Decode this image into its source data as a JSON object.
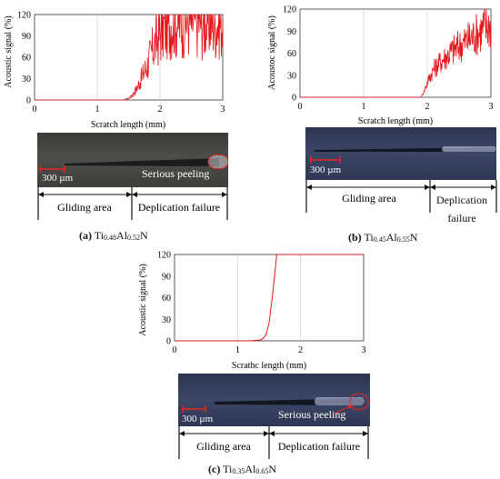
{
  "chart_data": [
    {
      "type": "line",
      "panel": "a",
      "xlabel": "Scratch length (mm)",
      "ylabel": "Acoustic signal (%)",
      "xlim": [
        0,
        3
      ],
      "ylim": [
        0,
        120
      ],
      "xticks": [
        0,
        1,
        2,
        3
      ],
      "yticks": [
        0,
        30,
        60,
        90,
        120
      ],
      "series": [
        {
          "color": "#e8141b",
          "x": [
            0,
            0.5,
            1.0,
            1.4,
            1.5,
            1.55,
            1.6,
            1.65,
            1.7,
            1.75,
            1.8,
            1.85,
            1.9,
            1.95,
            2.0,
            2.05,
            2.1,
            2.15,
            2.2,
            2.3,
            2.4,
            2.5,
            2.6,
            2.7,
            2.8,
            2.9,
            3.0
          ],
          "y": [
            0,
            0,
            0,
            0,
            2,
            6,
            12,
            20,
            30,
            40,
            50,
            62,
            75,
            85,
            95,
            100,
            106,
            110,
            112,
            110,
            113,
            110,
            114,
            108,
            112,
            109,
            111
          ]
        }
      ],
      "photo": {
        "scale_label": "300 µm",
        "label": "Serious peeling",
        "regions": [
          "Gliding area",
          "Deplication failure"
        ]
      },
      "caption": {
        "tag": "(a)",
        "formula": [
          "Ti",
          "0.48",
          "Al",
          "0.52",
          "N",
          ""
        ]
      }
    },
    {
      "type": "line",
      "panel": "b",
      "xlabel": "Scratch length (mm)",
      "ylabel": "Acoustoc signal (%)",
      "xlim": [
        0,
        3
      ],
      "ylim": [
        0,
        120
      ],
      "xticks": [
        0,
        1,
        2,
        3
      ],
      "yticks": [
        0,
        30,
        60,
        90,
        120
      ],
      "series": [
        {
          "color": "#e8141b",
          "x": [
            0,
            0.5,
            1.0,
            1.5,
            1.9,
            1.95,
            2.0,
            2.05,
            2.1,
            2.2,
            2.3,
            2.4,
            2.5,
            2.6,
            2.7,
            2.8,
            2.9,
            3.0
          ],
          "y": [
            0,
            0,
            0,
            0,
            0,
            8,
            20,
            30,
            38,
            48,
            56,
            64,
            70,
            76,
            82,
            88,
            95,
            100
          ]
        }
      ],
      "photo": {
        "scale_label": "300 µm",
        "regions": [
          "Gliding area",
          "Deplication failure"
        ]
      },
      "caption": {
        "tag": "(b)",
        "formula": [
          "Ti",
          "0.45",
          "Al",
          "0.55",
          "N",
          ""
        ]
      }
    },
    {
      "type": "line",
      "panel": "c",
      "xlabel": "Scrathc length (mm)",
      "ylabel": "Acoustic signal (%)",
      "xlim": [
        0,
        3
      ],
      "ylim": [
        0,
        120
      ],
      "xticks": [
        0,
        1,
        2,
        3
      ],
      "yticks": [
        0,
        30,
        60,
        90,
        120
      ],
      "series": [
        {
          "color": "#e8141b",
          "x": [
            0,
            0.5,
            1.0,
            1.2,
            1.35,
            1.4,
            1.45,
            1.5,
            1.55,
            1.6,
            1.62,
            1.7,
            2.0,
            2.5,
            3.0
          ],
          "y": [
            0,
            0,
            0,
            0,
            1,
            3,
            8,
            25,
            60,
            100,
            120,
            120,
            120,
            120,
            120
          ]
        }
      ],
      "photo": {
        "scale_label": "300 µm",
        "label": "Serious peeling",
        "regions": [
          "Gliding area",
          "Deplication failure"
        ]
      },
      "caption": {
        "tag": "(c)",
        "formula": [
          "Ti",
          "0.35",
          "Al",
          "0.65",
          "N",
          ""
        ]
      }
    }
  ]
}
